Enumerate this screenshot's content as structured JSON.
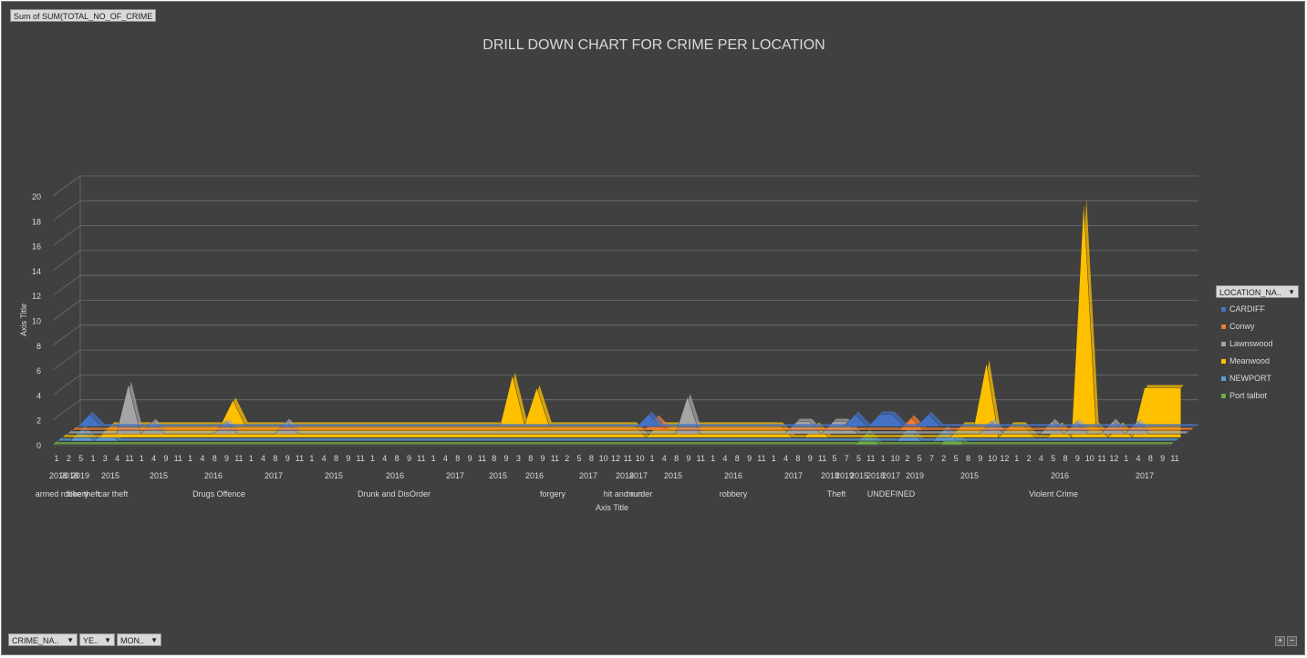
{
  "value_field_button": {
    "label": "Sum of SUM(TOTAL_NO_OF_CRIME"
  },
  "legend_field_button": {
    "label": "LOCATION_NA.."
  },
  "axis_field_buttons": [
    {
      "label": "CRIME_NA.."
    },
    {
      "label": "YE.."
    },
    {
      "label": "MON.."
    }
  ],
  "zoom": {
    "plus": "+",
    "minus": "−"
  },
  "dropdown_glyph": "▼",
  "chart_data": {
    "type": "area",
    "title": "DRILL DOWN CHART FOR CRIME PER LOCATION",
    "xlabel": "Axis Title",
    "ylabel": "Axis Title",
    "ylim": [
      0,
      20
    ],
    "yticks": [
      0,
      2,
      4,
      6,
      8,
      10,
      12,
      14,
      16,
      18,
      20
    ],
    "grid": true,
    "legend_position": "right",
    "categories": [
      "1",
      "2",
      "5",
      "1",
      "3",
      "4",
      "11",
      "1",
      "4",
      "9",
      "11",
      "1",
      "4",
      "8",
      "9",
      "11",
      "1",
      "4",
      "8",
      "9",
      "11",
      "1",
      "4",
      "8",
      "9",
      "11",
      "1",
      "4",
      "8",
      "9",
      "11",
      "1",
      "4",
      "8",
      "9",
      "11",
      "8",
      "9",
      "3",
      "8",
      "9",
      "11",
      "2",
      "5",
      "8",
      "10",
      "12",
      "11",
      "10",
      "1",
      "4",
      "8",
      "9",
      "11",
      "1",
      "4",
      "8",
      "9",
      "11",
      "1",
      "4",
      "8",
      "9",
      "11",
      "5",
      "7",
      "5",
      "11",
      "1",
      "10",
      "2",
      "5",
      "7",
      "2",
      "5",
      "8",
      "9",
      "10",
      "12",
      "1",
      "2",
      "4",
      "5",
      "8",
      "9",
      "10",
      "11",
      "12",
      "1",
      "4",
      "8",
      "9",
      "11"
    ],
    "year_labels": [
      "2018",
      "2018",
      "2019",
      "2015",
      "2015",
      "2016",
      "2017",
      "2015",
      "2016",
      "2017",
      "2015",
      "2016",
      "2017",
      "2018",
      "2017",
      "2015",
      "2016",
      "2017",
      "2018",
      "2019",
      "2015",
      "2018",
      "2017",
      "2019",
      "2015",
      "2016",
      "2017"
    ],
    "crime_labels": [
      "armed robbery",
      "bike theft",
      "car theft",
      "Drugs Offence",
      "Drunk and DisOrder",
      "forgery",
      "hit and run",
      "murder",
      "robbery",
      "Theft",
      "UNDEFINED",
      "Violent Crime"
    ],
    "series": [
      {
        "name": "CARDIFF",
        "color": "#4472c4",
        "values": [
          0,
          1,
          0,
          0,
          0,
          0,
          0,
          0,
          0,
          0,
          0,
          0,
          0,
          0,
          0,
          0,
          0,
          0,
          0,
          0,
          0,
          0,
          0,
          0,
          0,
          0,
          0,
          0,
          0,
          0,
          0,
          0,
          0,
          0,
          0,
          0,
          0,
          0,
          0,
          0,
          0,
          0,
          0,
          0,
          0,
          0,
          0,
          1,
          0,
          0,
          0,
          0,
          0,
          0,
          0,
          0,
          0,
          0,
          0,
          0,
          0,
          0,
          0,
          0,
          1,
          0,
          1,
          1,
          0,
          0,
          1,
          0,
          0,
          0,
          0,
          0,
          0,
          0,
          0,
          0,
          0,
          0,
          0,
          0,
          0,
          0,
          0,
          0,
          0,
          0,
          0,
          0,
          0
        ]
      },
      {
        "name": "Conwy",
        "color": "#ed7d31",
        "values": [
          0,
          0,
          0,
          0,
          0,
          0,
          0,
          0,
          0,
          0,
          0,
          0,
          0,
          0,
          0,
          0,
          0,
          0,
          0,
          0,
          0,
          0,
          0,
          0,
          0,
          0,
          0,
          0,
          0,
          0,
          0,
          0,
          0,
          0,
          0,
          0,
          0,
          0,
          0,
          0,
          0,
          0,
          0,
          0,
          0,
          0,
          0,
          0,
          1,
          0,
          0,
          0,
          0,
          0,
          0,
          0,
          0,
          0,
          0,
          0,
          0,
          0,
          0,
          0,
          0,
          0,
          0,
          0,
          0,
          1,
          0,
          0,
          0,
          0,
          0,
          0,
          0,
          0,
          0,
          0,
          0,
          0,
          0,
          0,
          0,
          0,
          0,
          0,
          0,
          0,
          0,
          0,
          0
        ]
      },
      {
        "name": "Lawnswood",
        "color": "#a5a5a5",
        "values": [
          0,
          0,
          0,
          0,
          0,
          4,
          0,
          1,
          0,
          0,
          0,
          0,
          0,
          1,
          0,
          0,
          0,
          0,
          1,
          0,
          0,
          0,
          0,
          0,
          0,
          0,
          0,
          0,
          0,
          0,
          0,
          0,
          0,
          0,
          0,
          0,
          0,
          0,
          0,
          0,
          0,
          0,
          0,
          0,
          0,
          0,
          0,
          0,
          0,
          0,
          0,
          3,
          0,
          0,
          0,
          0,
          0,
          0,
          0,
          0,
          1,
          1,
          0,
          1,
          1,
          0,
          0,
          0,
          0,
          0,
          0,
          0,
          0,
          0,
          0,
          0,
          1,
          0,
          0,
          0,
          0,
          1,
          0,
          1,
          0,
          0,
          1,
          0,
          1,
          0,
          0,
          0,
          0
        ]
      },
      {
        "name": "Meanwood",
        "color": "#ffc000",
        "values": [
          0,
          0,
          0,
          0,
          1,
          1,
          1,
          1,
          1,
          1,
          1,
          1,
          1,
          1,
          3,
          1,
          1,
          1,
          1,
          1,
          1,
          1,
          1,
          1,
          1,
          1,
          1,
          1,
          1,
          1,
          1,
          1,
          1,
          1,
          1,
          1,
          1,
          5,
          1,
          4,
          1,
          1,
          1,
          1,
          1,
          1,
          1,
          1,
          0,
          1,
          1,
          1,
          1,
          1,
          1,
          1,
          1,
          1,
          1,
          1,
          0,
          0,
          1,
          0,
          0,
          0,
          0,
          0,
          0,
          0,
          0,
          0,
          0,
          0,
          1,
          1,
          6,
          0,
          1,
          1,
          0,
          0,
          1,
          0,
          19,
          1,
          0,
          1,
          0,
          4,
          4,
          4,
          4
        ]
      },
      {
        "name": "NEWPORT",
        "color": "#5b9bd5",
        "values": [
          0,
          0,
          1,
          0,
          1,
          0,
          0,
          0,
          0,
          0,
          0,
          0,
          0,
          0,
          0,
          0,
          0,
          0,
          0,
          0,
          0,
          0,
          0,
          0,
          0,
          0,
          0,
          0,
          0,
          0,
          0,
          0,
          0,
          0,
          0,
          0,
          0,
          0,
          0,
          0,
          0,
          0,
          0,
          0,
          0,
          0,
          0,
          0,
          0,
          0,
          0,
          0,
          0,
          0,
          0,
          0,
          0,
          0,
          0,
          0,
          0,
          0,
          0,
          0,
          0,
          0,
          0,
          0,
          0,
          0,
          1,
          0,
          0,
          1,
          0,
          0,
          0,
          0,
          0,
          0,
          0,
          0,
          0,
          0,
          0,
          0,
          0,
          0,
          0,
          0,
          0,
          0,
          0
        ]
      },
      {
        "name": "Port talbot",
        "color": "#70ad47",
        "values": [
          0,
          0,
          0,
          0,
          0,
          0,
          0,
          0,
          0,
          0,
          0,
          0,
          0,
          0,
          0,
          0,
          0,
          0,
          0,
          0,
          0,
          0,
          0,
          0,
          0,
          0,
          0,
          0,
          0,
          0,
          0,
          0,
          0,
          0,
          0,
          0,
          0,
          0,
          0,
          0,
          0,
          0,
          0,
          0,
          0,
          0,
          0,
          0,
          0,
          0,
          0,
          0,
          0,
          0,
          0,
          0,
          0,
          0,
          0,
          0,
          0,
          0,
          0,
          0,
          0,
          0,
          0,
          1,
          0,
          0,
          0,
          0,
          0,
          0,
          1,
          0,
          0,
          0,
          0,
          0,
          0,
          0,
          0,
          0,
          0,
          0,
          0,
          0,
          0,
          0,
          0,
          0,
          0
        ]
      }
    ]
  }
}
